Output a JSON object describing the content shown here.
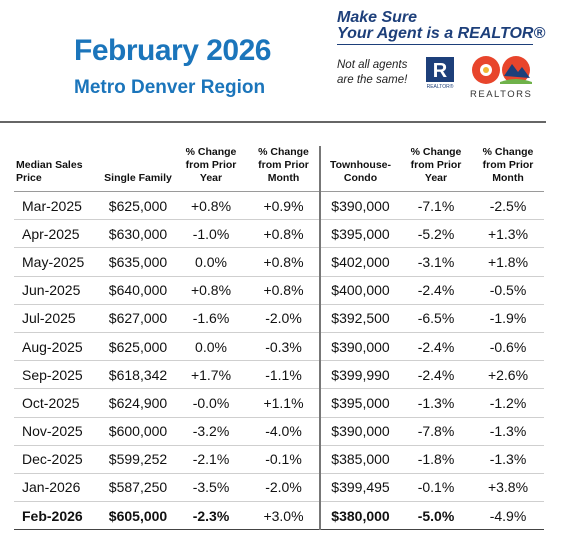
{
  "header": {
    "title": "February 2026",
    "subtitle": "Metro Denver Region",
    "tagline_line1": "Make Sure",
    "tagline_line2": "Your Agent is a REALTOR®",
    "note_line1": "Not all agents",
    "note_line2": "are the same!",
    "realtor_logo_letter": "R",
    "realtor_logo_caption": "REALTOR®",
    "cao_logo_text": "REALTORS"
  },
  "table": {
    "headers": {
      "median": "Median Sales Price",
      "single_family": "Single Family",
      "sf_change_year": "% Change from Prior Year",
      "sf_change_month": "% Change from Prior Month",
      "townhouse": "Townhouse-Condo",
      "tc_change_year": "% Change from Prior Year",
      "tc_change_month": "% Change from Prior Month"
    },
    "rows": [
      {
        "month": "Mar-2025",
        "sf": "$625,000",
        "sf_y": "+0.8%",
        "sf_m": "+0.9%",
        "tc": "$390,000",
        "tc_y": "-7.1%",
        "tc_m": "-2.5%"
      },
      {
        "month": "Apr-2025",
        "sf": "$630,000",
        "sf_y": "-1.0%",
        "sf_m": "+0.8%",
        "tc": "$395,000",
        "tc_y": "-5.2%",
        "tc_m": "+1.3%"
      },
      {
        "month": "May-2025",
        "sf": "$635,000",
        "sf_y": "0.0%",
        "sf_m": "+0.8%",
        "tc": "$402,000",
        "tc_y": "-3.1%",
        "tc_m": "+1.8%"
      },
      {
        "month": "Jun-2025",
        "sf": "$640,000",
        "sf_y": "+0.8%",
        "sf_m": "+0.8%",
        "tc": "$400,000",
        "tc_y": "-2.4%",
        "tc_m": "-0.5%"
      },
      {
        "month": "Jul-2025",
        "sf": "$627,000",
        "sf_y": "-1.6%",
        "sf_m": "-2.0%",
        "tc": "$392,500",
        "tc_y": "-6.5%",
        "tc_m": "-1.9%"
      },
      {
        "month": "Aug-2025",
        "sf": "$625,000",
        "sf_y": "0.0%",
        "sf_m": "-0.3%",
        "tc": "$390,000",
        "tc_y": "-2.4%",
        "tc_m": "-0.6%"
      },
      {
        "month": "Sep-2025",
        "sf": "$618,342",
        "sf_y": "+1.7%",
        "sf_m": "-1.1%",
        "tc": "$399,990",
        "tc_y": "-2.4%",
        "tc_m": "+2.6%"
      },
      {
        "month": "Oct-2025",
        "sf": "$624,900",
        "sf_y": "-0.0%",
        "sf_m": "+1.1%",
        "tc": "$395,000",
        "tc_y": "-1.3%",
        "tc_m": "-1.2%"
      },
      {
        "month": "Nov-2025",
        "sf": "$600,000",
        "sf_y": "-3.2%",
        "sf_m": "-4.0%",
        "tc": "$390,000",
        "tc_y": "-7.8%",
        "tc_m": "-1.3%"
      },
      {
        "month": "Dec-2025",
        "sf": "$599,252",
        "sf_y": "-2.1%",
        "sf_m": "-0.1%",
        "tc": "$385,000",
        "tc_y": "-1.8%",
        "tc_m": "-1.3%"
      },
      {
        "month": "Jan-2026",
        "sf": "$587,250",
        "sf_y": "-3.5%",
        "sf_m": "-2.0%",
        "tc": "$399,495",
        "tc_y": "-0.1%",
        "tc_m": "+3.8%"
      },
      {
        "month": "Feb-2026",
        "sf": "$605,000",
        "sf_y": "-2.3%",
        "sf_m": "+3.0%",
        "tc": "$380,000",
        "tc_y": "-5.0%",
        "tc_m": "-4.9%"
      }
    ]
  },
  "colors": {
    "title_blue": "#1b75bb",
    "tagline_navy": "#1d3f7a"
  }
}
